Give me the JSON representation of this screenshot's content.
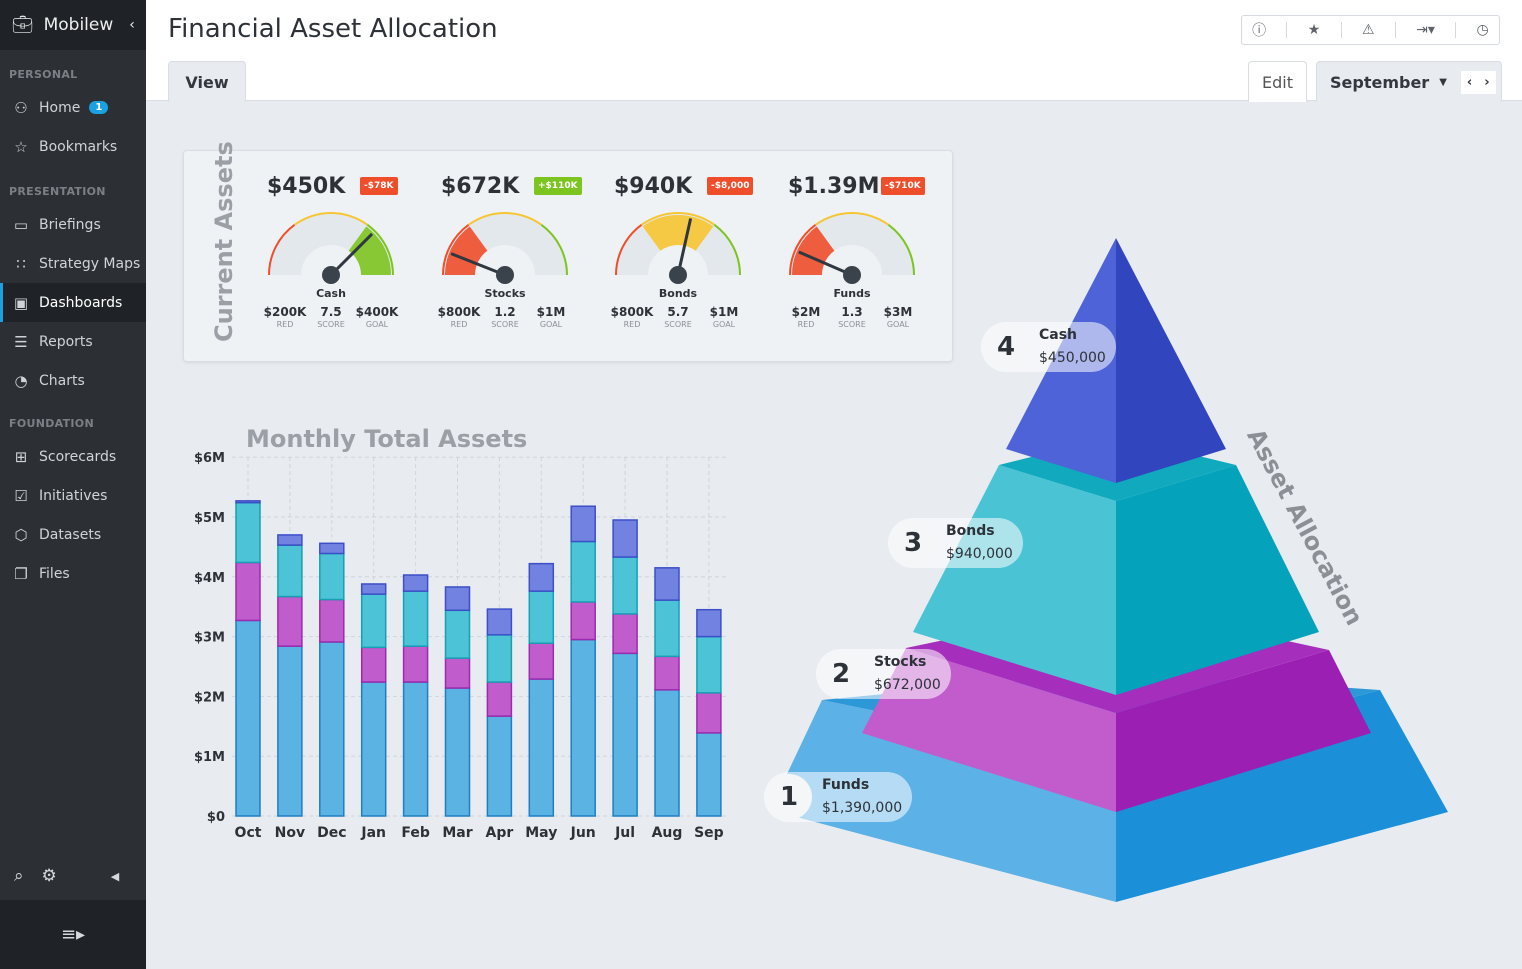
{
  "app": {
    "brand": "Mobilew",
    "brand_faded": "w",
    "brand_icon": "briefcase-icon"
  },
  "sidebar": {
    "sections": [
      {
        "label": "PERSONAL",
        "items": [
          {
            "label": "Home",
            "icon": "user-icon",
            "badge": "1"
          },
          {
            "label": "Bookmarks",
            "icon": "star-icon"
          }
        ]
      },
      {
        "label": "PRESENTATION",
        "items": [
          {
            "label": "Briefings",
            "icon": "book-icon"
          },
          {
            "label": "Strategy Maps",
            "icon": "strategy-map-icon"
          },
          {
            "label": "Dashboards",
            "icon": "dashboard-icon",
            "active": true
          },
          {
            "label": "Reports",
            "icon": "list-icon"
          },
          {
            "label": "Charts",
            "icon": "pie-chart-icon"
          }
        ]
      },
      {
        "label": "FOUNDATION",
        "items": [
          {
            "label": "Scorecards",
            "icon": "scorecard-icon"
          },
          {
            "label": "Initiatives",
            "icon": "checkbox-icon"
          },
          {
            "label": "Datasets",
            "icon": "cube-icon"
          },
          {
            "label": "Files",
            "icon": "files-icon"
          }
        ]
      }
    ]
  },
  "header": {
    "title": "Financial Asset Allocation",
    "tabs": {
      "view": "View",
      "edit": "Edit"
    },
    "period": "September",
    "toolbar_icons": [
      "info-icon",
      "star-icon",
      "warning-icon",
      "export-icon",
      "clock-icon"
    ]
  },
  "current_assets": {
    "title": "Current Assets",
    "gauges": [
      {
        "value": "$450K",
        "delta": "-$78K",
        "delta_color": "#ef4e2b",
        "name": "Cash",
        "red": "$200K",
        "score": "7.5",
        "goal": "$400K",
        "score_num": 7.5,
        "zone": "green"
      },
      {
        "value": "$672K",
        "delta": "+$110K",
        "delta_color": "#7cc41f",
        "name": "Stocks",
        "red": "$800K",
        "score": "1.2",
        "goal": "$1M",
        "score_num": 1.2,
        "zone": "red"
      },
      {
        "value": "$940K",
        "delta": "-$8,000",
        "delta_color": "#ef4e2b",
        "name": "Bonds",
        "red": "$800K",
        "score": "5.7",
        "goal": "$1M",
        "score_num": 5.7,
        "zone": "yellow"
      },
      {
        "value": "$1.39M",
        "delta": "-$710K",
        "delta_color": "#ef4e2b",
        "name": "Funds",
        "red": "$2M",
        "score": "1.3",
        "goal": "$3M",
        "score_num": 1.3,
        "zone": "red"
      }
    ],
    "labels": {
      "red": "RED",
      "score": "SCORE",
      "goal": "GOAL"
    }
  },
  "chart_data": {
    "type": "bar",
    "stacked": true,
    "title": "Monthly Total Assets",
    "xlabel": "",
    "ylabel": "",
    "categories": [
      "Oct",
      "Nov",
      "Dec",
      "Jan",
      "Feb",
      "Mar",
      "Apr",
      "May",
      "Jun",
      "Jul",
      "Aug",
      "Sep"
    ],
    "yticks": [
      "$0",
      "$1M",
      "$2M",
      "$3M",
      "$4M",
      "$5M",
      "$6M"
    ],
    "ylim": [
      0,
      6
    ],
    "unit": "$M",
    "grid": true,
    "series": [
      {
        "color": "#5bb3e4",
        "values": [
          3.27,
          2.84,
          2.91,
          2.24,
          2.24,
          2.14,
          1.67,
          2.29,
          2.95,
          2.72,
          2.11,
          1.39
        ]
      },
      {
        "color": "#c05ccb",
        "values": [
          0.97,
          0.83,
          0.71,
          0.58,
          0.6,
          0.5,
          0.57,
          0.6,
          0.63,
          0.66,
          0.56,
          0.67
        ]
      },
      {
        "color": "#4cc3d6",
        "values": [
          1.0,
          0.86,
          0.77,
          0.89,
          0.92,
          0.8,
          0.79,
          0.87,
          1.01,
          0.95,
          0.94,
          0.94
        ]
      },
      {
        "color": "#7282e0",
        "values": [
          0.03,
          0.17,
          0.17,
          0.17,
          0.27,
          0.39,
          0.43,
          0.46,
          0.59,
          0.62,
          0.54,
          0.45
        ]
      }
    ]
  },
  "pyramid": {
    "title": "Asset Allocation",
    "tiers": [
      {
        "rank": "1",
        "name": "Funds",
        "amount": "$1,390,000"
      },
      {
        "rank": "2",
        "name": "Stocks",
        "amount": "$672,000"
      },
      {
        "rank": "3",
        "name": "Bonds",
        "amount": "$940,000"
      },
      {
        "rank": "4",
        "name": "Cash",
        "amount": "$450,000"
      }
    ]
  }
}
